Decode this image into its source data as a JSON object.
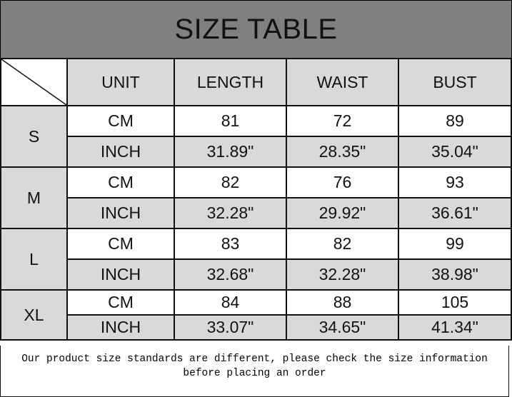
{
  "title": "SIZE TABLE",
  "headers": [
    "UNIT",
    "LENGTH",
    "WAIST",
    "BUST"
  ],
  "rows": [
    {
      "size": "S",
      "cm": {
        "unit": "CM",
        "length": "81",
        "waist": "72",
        "bust": "89"
      },
      "inch": {
        "unit": "INCH",
        "length": "31.89\"",
        "waist": "28.35\"",
        "bust": "35.04\""
      }
    },
    {
      "size": "M",
      "cm": {
        "unit": "CM",
        "length": "82",
        "waist": "76",
        "bust": "93"
      },
      "inch": {
        "unit": "INCH",
        "length": "32.28\"",
        "waist": "29.92\"",
        "bust": "36.61\""
      }
    },
    {
      "size": "L",
      "cm": {
        "unit": "CM",
        "length": "83",
        "waist": "82",
        "bust": "99"
      },
      "inch": {
        "unit": "INCH",
        "length": "32.68\"",
        "waist": "32.28\"",
        "bust": "38.98\""
      }
    },
    {
      "size": "XL",
      "cm": {
        "unit": "CM",
        "length": "84",
        "waist": "88",
        "bust": "105"
      },
      "inch": {
        "unit": "INCH",
        "length": "33.07\"",
        "waist": "34.65\"",
        "bust": "41.34\""
      }
    }
  ],
  "note": "Our product size standards are different, please check the size information before placing an order",
  "colors": {
    "title_bg": "#808080",
    "cell_gray": "#d9d9d9",
    "cell_white": "#ffffff"
  }
}
